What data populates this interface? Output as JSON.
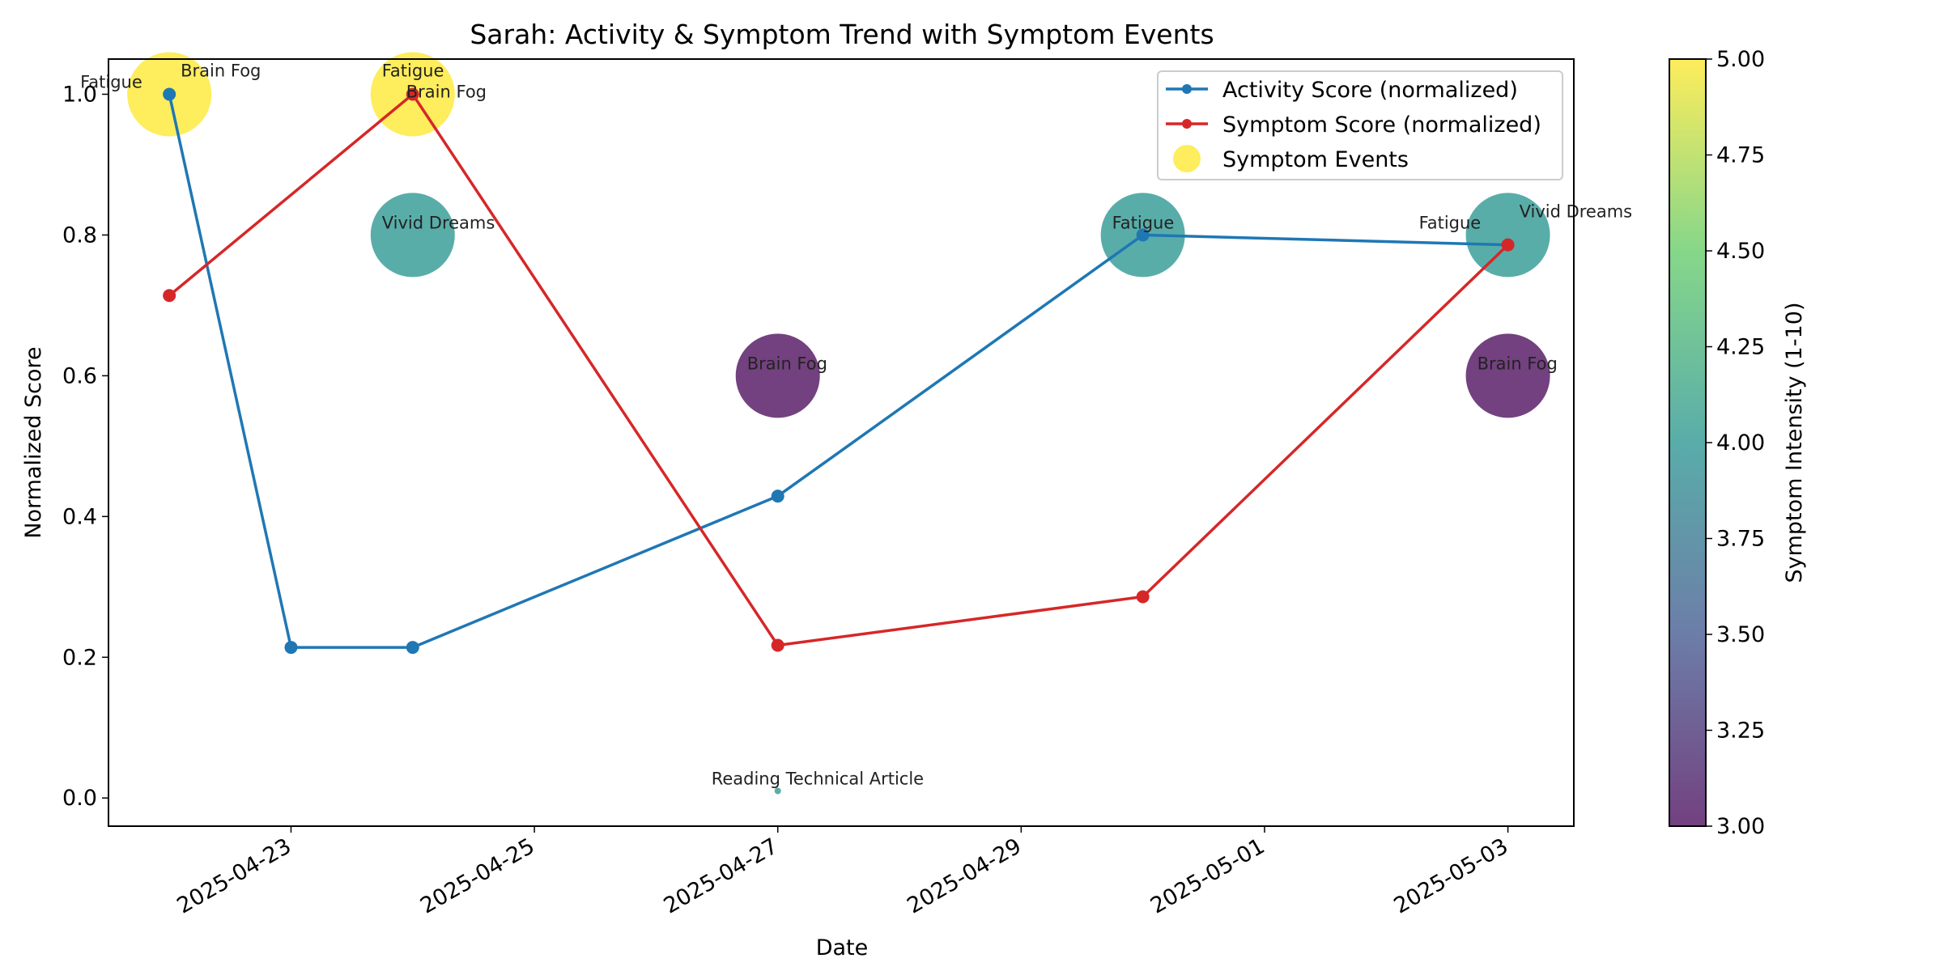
{
  "chart_data": {
    "type": "line",
    "title": "Sarah: Activity & Symptom Trend with Symptom Events",
    "xlabel": "Date",
    "ylabel": "Normalized Score",
    "x_ticks": [
      "2025-04-23",
      "2025-04-25",
      "2025-04-27",
      "2025-04-29",
      "2025-05-01",
      "2025-05-03"
    ],
    "y_ticks": [
      "0.0",
      "0.2",
      "0.4",
      "0.6",
      "0.8",
      "1.0"
    ],
    "xlim": [
      "2025-04-21T12:00",
      "2025-05-03T13:00"
    ],
    "ylim": [
      -0.04,
      1.05
    ],
    "grid": false,
    "legend_position": "top-right",
    "series": [
      {
        "name": "Activity Score (normalized)",
        "color": "#1f77b4",
        "points": [
          {
            "x": "2025-04-22",
            "y": 1.0
          },
          {
            "x": "2025-04-23",
            "y": 0.214
          },
          {
            "x": "2025-04-24",
            "y": 0.214
          },
          {
            "x": "2025-04-27",
            "y": 0.429
          },
          {
            "x": "2025-04-30",
            "y": 0.8
          },
          {
            "x": "2025-05-03",
            "y": 0.786
          }
        ]
      },
      {
        "name": "Symptom Score (normalized)",
        "color": "#d62728",
        "points": [
          {
            "x": "2025-04-22",
            "y": 0.714
          },
          {
            "x": "2025-04-24",
            "y": 1.0
          },
          {
            "x": "2025-04-27",
            "y": 0.217
          },
          {
            "x": "2025-04-30",
            "y": 0.286
          },
          {
            "x": "2025-05-03",
            "y": 0.786
          }
        ]
      }
    ],
    "events": {
      "name": "Symptom Events",
      "items": [
        {
          "x": "2025-04-22",
          "y": 1.0,
          "label": "Fatigue",
          "intensity": 5,
          "label_side": "left"
        },
        {
          "x": "2025-04-22",
          "y": 1.0,
          "label": "Brain Fog",
          "intensity": 5,
          "label_side": "right-up"
        },
        {
          "x": "2025-04-24",
          "y": 1.0,
          "label": "Fatigue",
          "intensity": 5,
          "label_side": "up"
        },
        {
          "x": "2025-04-24",
          "y": 1.0,
          "label": "Brain Fog",
          "intensity": 5,
          "label_side": "right"
        },
        {
          "x": "2025-04-24",
          "y": 0.8,
          "label": "Vivid Dreams",
          "intensity": 4,
          "label_side": "right"
        },
        {
          "x": "2025-04-27",
          "y": 0.6,
          "label": "Brain Fog",
          "intensity": 3,
          "label_side": "right"
        },
        {
          "x": "2025-04-27",
          "y": 0.01,
          "label": "Reading Technical Article",
          "intensity": 4,
          "label_side": "right",
          "small": true
        },
        {
          "x": "2025-04-30",
          "y": 0.8,
          "label": "Fatigue",
          "intensity": 4,
          "label_side": "right"
        },
        {
          "x": "2025-05-03",
          "y": 0.8,
          "label": "Fatigue",
          "intensity": 4,
          "label_side": "left"
        },
        {
          "x": "2025-05-03",
          "y": 0.8,
          "label": "Vivid Dreams",
          "intensity": 4,
          "label_side": "right-up"
        },
        {
          "x": "2025-05-03",
          "y": 0.6,
          "label": "Brain Fog",
          "intensity": 3,
          "label_side": "right"
        }
      ]
    },
    "colorbar": {
      "label": "Symptom Intensity (1-10)",
      "min": 3.0,
      "max": 5.0,
      "ticks": [
        "3.00",
        "3.25",
        "3.50",
        "3.75",
        "4.00",
        "4.25",
        "4.50",
        "4.75",
        "5.00"
      ],
      "colormap": "viridis"
    }
  }
}
